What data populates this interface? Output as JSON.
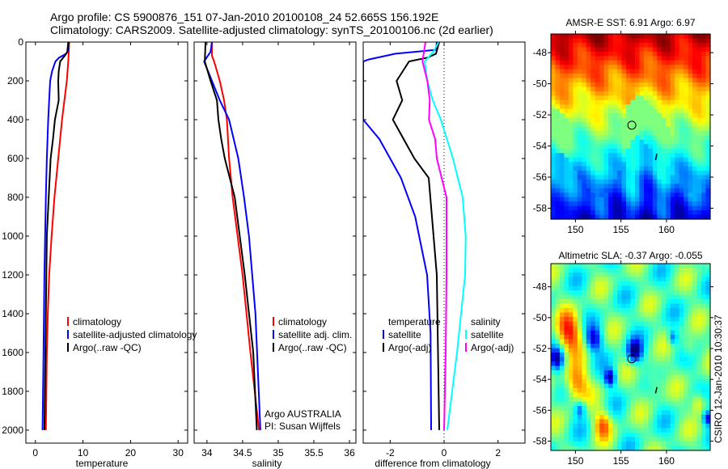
{
  "header": {
    "line1": "Argo profile: CS 5900876_151 07-Jan-2010 20100108_24 52.665S 156.192E",
    "line2": "Climatology: CARS2009. Satellite-adjusted climatology: synTS_20100106.nc (2d earlier)"
  },
  "credit": "CSIRO 12-Jan-2010 10:30:37",
  "colors": {
    "climatology": "#ff0000",
    "satellite": "#0000ff",
    "argo": "#000000",
    "sal_satellite": "#00ffff",
    "sal_argo": "#ff00ff"
  },
  "chart_data": [
    {
      "type": "line",
      "xlabel": "temperature",
      "xlim": [
        -2,
        32
      ],
      "ylim": [
        2067,
        0
      ],
      "xticks": [
        "0",
        "10",
        "20",
        "30"
      ],
      "xtick_values": [
        0,
        10,
        20,
        30
      ],
      "yticks": [
        "0",
        "200",
        "400",
        "600",
        "800",
        "1000",
        "1200",
        "1400",
        "1600",
        "1800",
        "2000"
      ],
      "ytick_values": [
        0,
        200,
        400,
        600,
        800,
        1000,
        1200,
        1400,
        1600,
        1800,
        2000
      ],
      "legend": [
        "climatology",
        "satellite-adjusted climatology",
        "Argo(..raw -QC)"
      ],
      "series": [
        {
          "name": "climatology",
          "color": "#ff0000",
          "depth": [
            0,
            60,
            100,
            200,
            400,
            600,
            800,
            1000,
            1200,
            1400,
            1600,
            2000
          ],
          "values": [
            7.1,
            7.0,
            6.9,
            6.6,
            5.6,
            4.8,
            4.0,
            3.4,
            2.9,
            2.6,
            2.4,
            2.2
          ]
        },
        {
          "name": "satellite-adjusted climatology",
          "color": "#0000ff",
          "depth": [
            0,
            40,
            60,
            80,
            100,
            150,
            200,
            400,
            600,
            800,
            1200,
            1600,
            2000
          ],
          "values": [
            7.0,
            6.9,
            6.5,
            5.0,
            4.2,
            3.5,
            3.1,
            2.7,
            2.4,
            2.2,
            1.9,
            1.7,
            1.5
          ]
        },
        {
          "name": "Argo(..raw -QC)",
          "color": "#000000",
          "depth": [
            0,
            50,
            70,
            100,
            150,
            200,
            300,
            400,
            500,
            600,
            800,
            1000,
            1400,
            1800,
            2000
          ],
          "values": [
            6.9,
            6.7,
            6.2,
            5.2,
            4.9,
            4.8,
            4.9,
            4.1,
            3.7,
            3.2,
            2.8,
            2.4,
            2.2,
            2.0,
            1.9
          ]
        }
      ]
    },
    {
      "type": "line",
      "xlabel": "salinity",
      "xlim": [
        33.82,
        36.09
      ],
      "ylim": [
        2067,
        0
      ],
      "xticks": [
        "34",
        "34.5",
        "35",
        "35.5",
        "36"
      ],
      "xtick_values": [
        34,
        34.5,
        35,
        35.5,
        36
      ],
      "legend": [
        "climatology",
        "satellite adj. clim.",
        "Argo(..raw -QC)"
      ],
      "annotation": [
        "Argo AUSTRALIA",
        "PI: Susan Wijffels"
      ],
      "series": [
        {
          "name": "climatology",
          "color": "#ff0000",
          "depth": [
            0,
            70,
            100,
            200,
            300,
            400,
            600,
            800,
            1200,
            1600,
            2000
          ],
          "values": [
            34.07,
            34.07,
            34.1,
            34.18,
            34.24,
            34.28,
            34.31,
            34.36,
            34.5,
            34.61,
            34.73
          ]
        },
        {
          "name": "satellite adj. clim.",
          "color": "#0000ff",
          "depth": [
            0,
            50,
            100,
            200,
            300,
            400,
            600,
            800,
            1000,
            1400,
            2000
          ],
          "values": [
            34.07,
            34.05,
            33.96,
            34.07,
            34.18,
            34.31,
            34.44,
            34.52,
            34.59,
            34.68,
            34.75
          ]
        },
        {
          "name": "Argo(..raw -QC)",
          "color": "#000000",
          "depth": [
            0,
            100,
            200,
            300,
            400,
            500,
            600,
            800,
            1200,
            1600,
            2000
          ],
          "values": [
            33.98,
            33.97,
            34.05,
            34.14,
            34.16,
            34.2,
            34.25,
            34.39,
            34.53,
            34.65,
            34.7
          ]
        }
      ]
    },
    {
      "type": "line",
      "xlabel": "difference from climatology",
      "xlim": [
        -3,
        3
      ],
      "ylim": [
        2067,
        0
      ],
      "xticks": [
        "-2",
        "0",
        "2"
      ],
      "xtick_values": [
        -2,
        0,
        2
      ],
      "legend_headers": [
        "temperature",
        "salinity"
      ],
      "legend": [
        "satellite",
        "Argo(-adj)",
        "satellite",
        "Argo(-adj)"
      ],
      "series": [
        {
          "name": "temperature satellite",
          "color": "#0000ff",
          "depth": [
            0,
            40,
            60,
            90,
            100,
            400,
            500,
            700,
            900,
            1200,
            1500,
            2000
          ],
          "values": [
            -0.27,
            -0.3,
            -1.8,
            -2.8,
            -3.0,
            -3.0,
            -2.4,
            -1.6,
            -1.07,
            -0.63,
            -0.5,
            -0.48
          ]
        },
        {
          "name": "temperature Argo(-adj)",
          "color": "#000000",
          "depth": [
            0,
            60,
            80,
            100,
            200,
            300,
            400,
            500,
            600,
            700,
            900,
            1200,
            2000
          ],
          "values": [
            -0.18,
            -0.3,
            -0.6,
            -1.3,
            -1.76,
            -1.55,
            -1.9,
            -1.5,
            -1.1,
            -0.57,
            -0.45,
            -0.27,
            -0.18
          ]
        },
        {
          "name": "salinity satellite",
          "color": "#00ffff",
          "depth": [
            0,
            50,
            100,
            200,
            300,
            400,
            600,
            800,
            1000,
            1200,
            1600,
            2000
          ],
          "values": [
            -0.2,
            -0.4,
            -0.72,
            -0.62,
            -0.42,
            -0.12,
            0.33,
            0.69,
            0.8,
            0.78,
            0.48,
            0.12
          ]
        },
        {
          "name": "salinity Argo(-adj)",
          "color": "#ff00ff",
          "depth": [
            0,
            100,
            200,
            300,
            400,
            500,
            600,
            800,
            1200,
            1600,
            2000
          ],
          "values": [
            -0.69,
            -0.8,
            -0.62,
            -0.53,
            -0.56,
            -0.33,
            -0.27,
            0.09,
            0.09,
            0.06,
            0.0
          ]
        }
      ]
    },
    {
      "type": "heatmap",
      "title": "AMSR-E SST: 6.91 Argo: 6.97",
      "xlim": [
        147.3,
        164.8
      ],
      "ylim": [
        -46.8,
        -58.7
      ],
      "xticks": [
        "150",
        "155",
        "160"
      ],
      "xtick_values": [
        150,
        155,
        160
      ],
      "yticks": [
        "-48",
        "-50",
        "-52",
        "-54",
        "-56",
        "-58"
      ],
      "ytick_values": [
        -48,
        -50,
        -52,
        -54,
        -56,
        -58
      ],
      "marker": {
        "lon": 156.192,
        "lat": -52.665
      }
    },
    {
      "type": "heatmap",
      "title": "Altimetric SLA: -0.37 Argo: -0.055",
      "xlim": [
        147.3,
        164.8
      ],
      "ylim": [
        -46.5,
        -58.6
      ],
      "xticks": [
        "150",
        "155",
        "160"
      ],
      "xtick_values": [
        150,
        155,
        160
      ],
      "yticks": [
        "-48",
        "-50",
        "-52",
        "-54",
        "-56",
        "-58"
      ],
      "ytick_values": [
        -48,
        -50,
        -52,
        -54,
        -56,
        -58
      ],
      "marker": {
        "lon": 156.192,
        "lat": -52.665
      }
    }
  ]
}
